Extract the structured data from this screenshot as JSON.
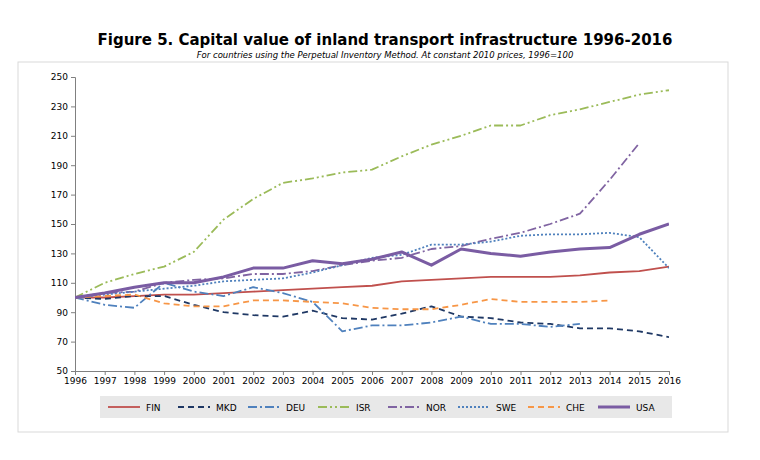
{
  "chart_data": {
    "type": "line",
    "title": "Figure 5. Capital value of inland transport infrastructure 1996-2016",
    "subtitle": "For countries using the Perpetual Inventory Method. At constant 2010 prices, 1996=100",
    "x": [
      1996,
      1997,
      1998,
      1999,
      2000,
      2001,
      2002,
      2003,
      2004,
      2005,
      2006,
      2007,
      2008,
      2009,
      2010,
      2011,
      2012,
      2013,
      2014,
      2015,
      2016
    ],
    "xlim": [
      1996,
      2016
    ],
    "xticks": [
      1996,
      1997,
      1998,
      1999,
      2000,
      2001,
      2002,
      2003,
      2004,
      2005,
      2006,
      2007,
      2008,
      2009,
      2010,
      2011,
      2012,
      2013,
      2014,
      2015,
      2016
    ],
    "ylim": [
      50,
      250
    ],
    "yticks": [
      50,
      70,
      90,
      110,
      130,
      150,
      170,
      190,
      210,
      230,
      250
    ],
    "grid": false,
    "legend": "bottom",
    "series": [
      {
        "name": "FIN",
        "color": "#c0504d",
        "line_style": "solid",
        "values": [
          100,
          100,
          101,
          102,
          102,
          103,
          104,
          105,
          106,
          107,
          108,
          111,
          112,
          113,
          114,
          114,
          114,
          115,
          117,
          118,
          121
        ]
      },
      {
        "name": "MKD",
        "color": "#1f3864",
        "line_style": "dashed",
        "values": [
          100,
          99,
          101,
          101,
          95,
          90,
          88,
          87,
          91,
          86,
          85,
          89,
          94,
          87,
          86,
          83,
          82,
          79,
          79,
          77,
          73
        ]
      },
      {
        "name": "DEU",
        "color": "#4f81bd",
        "line_style": "dashdot",
        "values": [
          100,
          95,
          93,
          110,
          104,
          101,
          107,
          103,
          97,
          77,
          81,
          81,
          83,
          87,
          82,
          82,
          80,
          82,
          null,
          null,
          null
        ]
      },
      {
        "name": "ISR",
        "color": "#9bbb59",
        "line_style": "dashdotdot",
        "values": [
          100,
          110,
          116,
          121,
          131,
          153,
          167,
          178,
          181,
          185,
          187,
          196,
          204,
          210,
          217,
          217,
          224,
          228,
          233,
          238,
          241
        ]
      },
      {
        "name": "NOR",
        "color": "#8064a2",
        "line_style": "dashdot",
        "values": [
          100,
          103,
          104,
          110,
          112,
          113,
          116,
          116,
          118,
          122,
          125,
          127,
          133,
          135,
          140,
          144,
          150,
          157,
          180,
          205,
          null
        ]
      },
      {
        "name": "SWE",
        "color": "#4f81bd",
        "line_style": "dotted",
        "values": [
          100,
          102,
          104,
          106,
          108,
          111,
          112,
          113,
          117,
          122,
          127,
          129,
          136,
          136,
          138,
          142,
          143,
          143,
          144,
          141,
          120
        ]
      },
      {
        "name": "CHE",
        "color": "#f79646",
        "line_style": "dashed",
        "values": [
          100,
          101,
          102,
          96,
          94,
          94,
          98,
          98,
          97,
          96,
          93,
          92,
          92,
          95,
          99,
          97,
          97,
          97,
          98,
          null,
          null
        ]
      },
      {
        "name": "USA",
        "color": "#7a5ca3",
        "line_style": "solid",
        "values": [
          100,
          103,
          107,
          110,
          110,
          114,
          120,
          120,
          125,
          123,
          126,
          131,
          122,
          133,
          130,
          128,
          131,
          133,
          134,
          143,
          150
        ]
      }
    ]
  }
}
